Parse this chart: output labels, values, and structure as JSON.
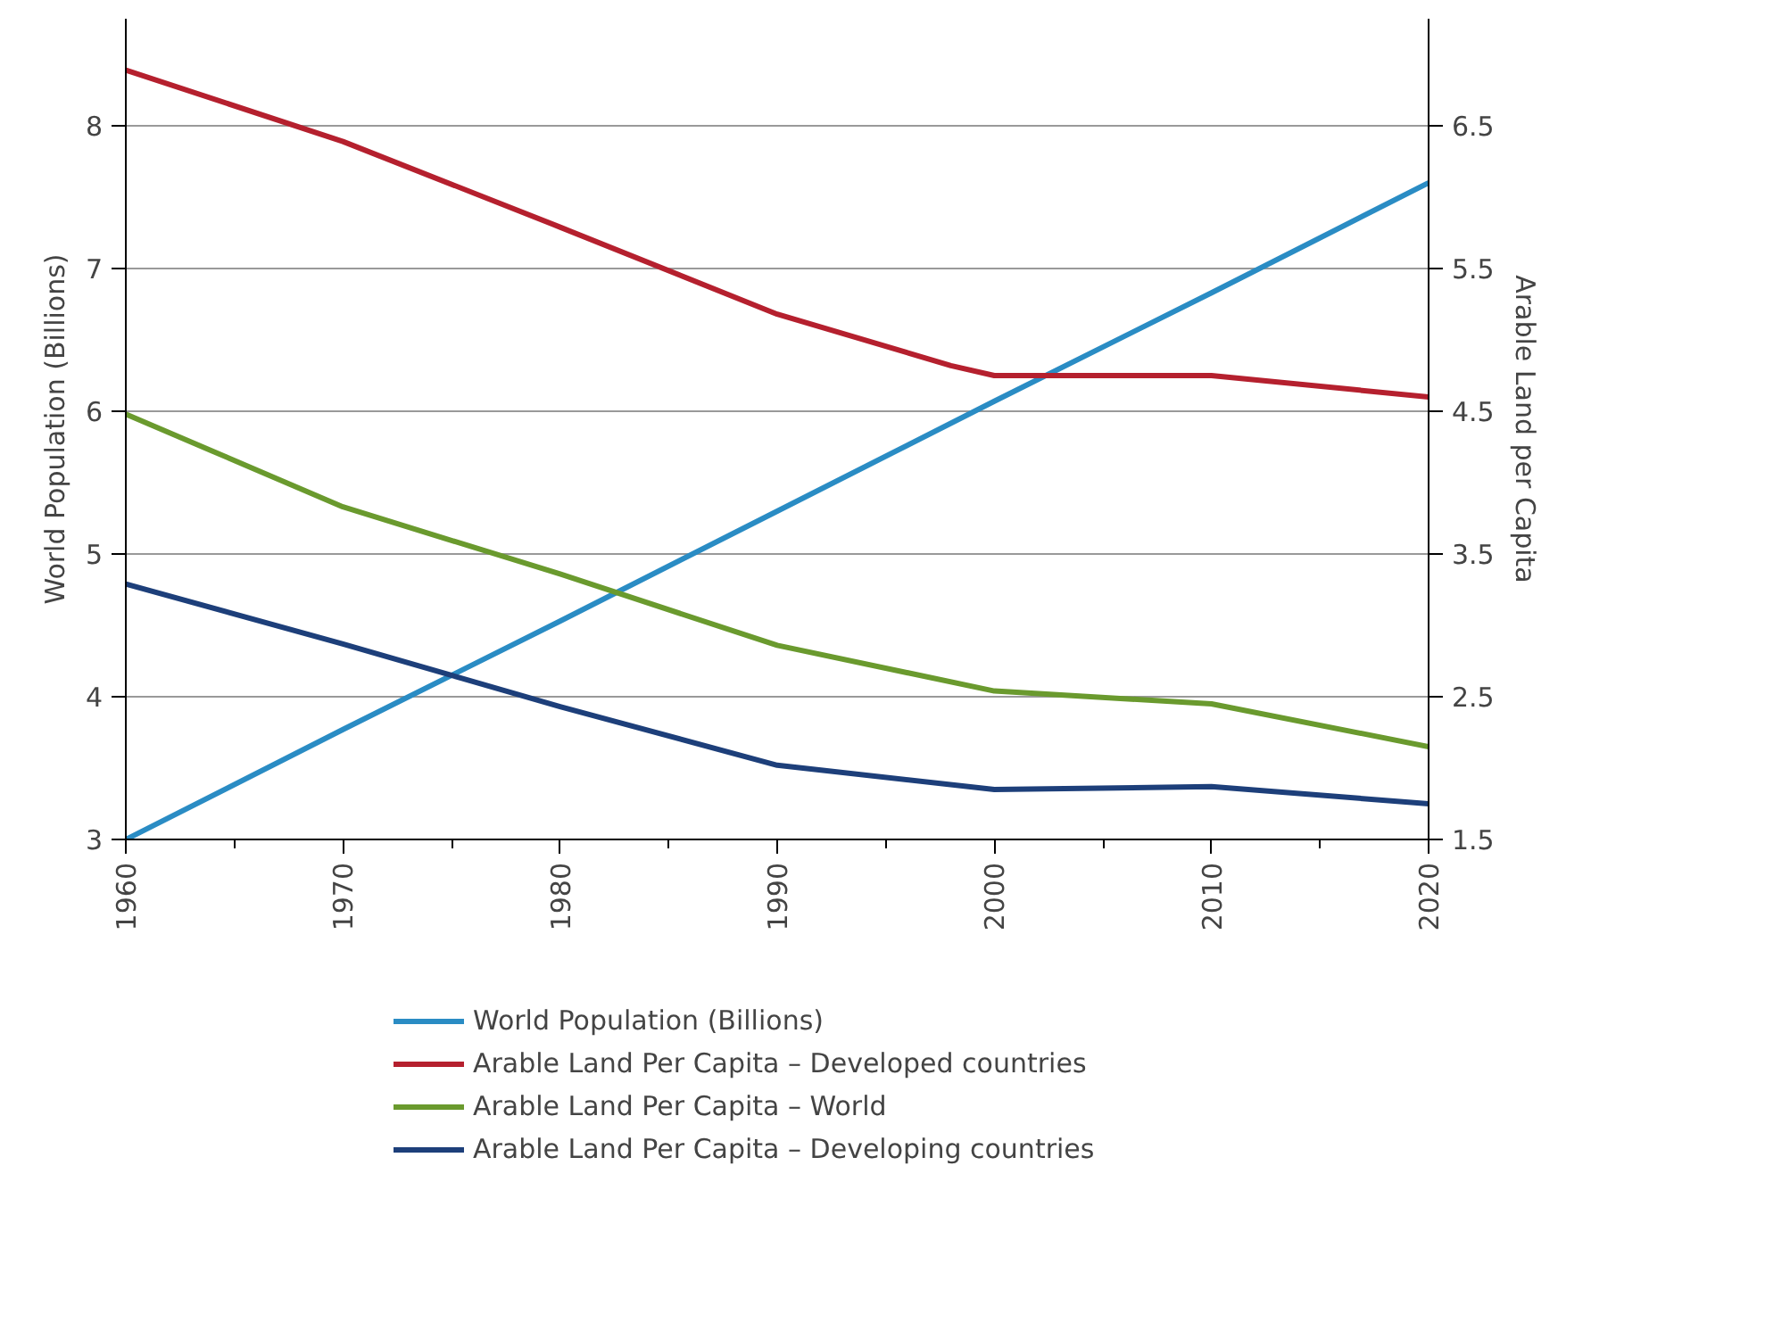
{
  "chart_data": {
    "type": "line",
    "ylabel": "World Population (Billions)",
    "y2label": "Arable Land per Capita",
    "x": [
      1960,
      1970,
      1980,
      1990,
      2000,
      2010,
      2020
    ],
    "xlim": [
      1960,
      2020
    ],
    "xticks": [
      1960,
      {
        "value": 1965,
        "label": null
      },
      1970,
      {
        "value": 1975,
        "label": null
      },
      1980,
      {
        "value": 1985,
        "label": null
      },
      1990,
      {
        "value": 1995,
        "label": null
      },
      2000,
      {
        "value": 2005,
        "label": null
      },
      2010,
      {
        "value": 2015,
        "label": null
      },
      2020
    ],
    "ylim": [
      3,
      8.75
    ],
    "yticks": [
      3,
      4,
      5,
      6,
      7,
      8
    ],
    "y2lim": [
      1.5,
      7.25
    ],
    "y2ticks": [
      1.5,
      2.5,
      3.5,
      4.5,
      5.5,
      6.5
    ],
    "grid": "y",
    "legend": "bottom",
    "line_style": "solid",
    "series": [
      {
        "name": "World Population (Billions)",
        "color": "#2a8cc4",
        "values": [
          3.0,
          3.77,
          4.53,
          5.3,
          6.07,
          6.83,
          7.6
        ]
      },
      {
        "name": "Arable Land Per Capita – Developed countries",
        "color": "#b5202e",
        "axis": "y2",
        "x": [
          1960,
          1970,
          1980,
          1990,
          1998,
          2000,
          2010,
          2020
        ],
        "values": [
          6.89,
          6.39,
          5.79,
          5.18,
          4.82,
          4.75,
          4.75,
          4.6
        ]
      },
      {
        "name": "Arable Land Per Capita – World",
        "color": "#6a9a2e",
        "axis": "y2",
        "values": [
          4.48,
          3.83,
          3.36,
          2.86,
          2.54,
          2.45,
          2.15
        ]
      },
      {
        "name": "Arable Land Per Capita – Developing countries",
        "color": "#1d3f7a",
        "axis": "y2",
        "values": [
          3.29,
          2.87,
          2.43,
          2.02,
          1.85,
          1.87,
          1.75
        ]
      }
    ]
  }
}
